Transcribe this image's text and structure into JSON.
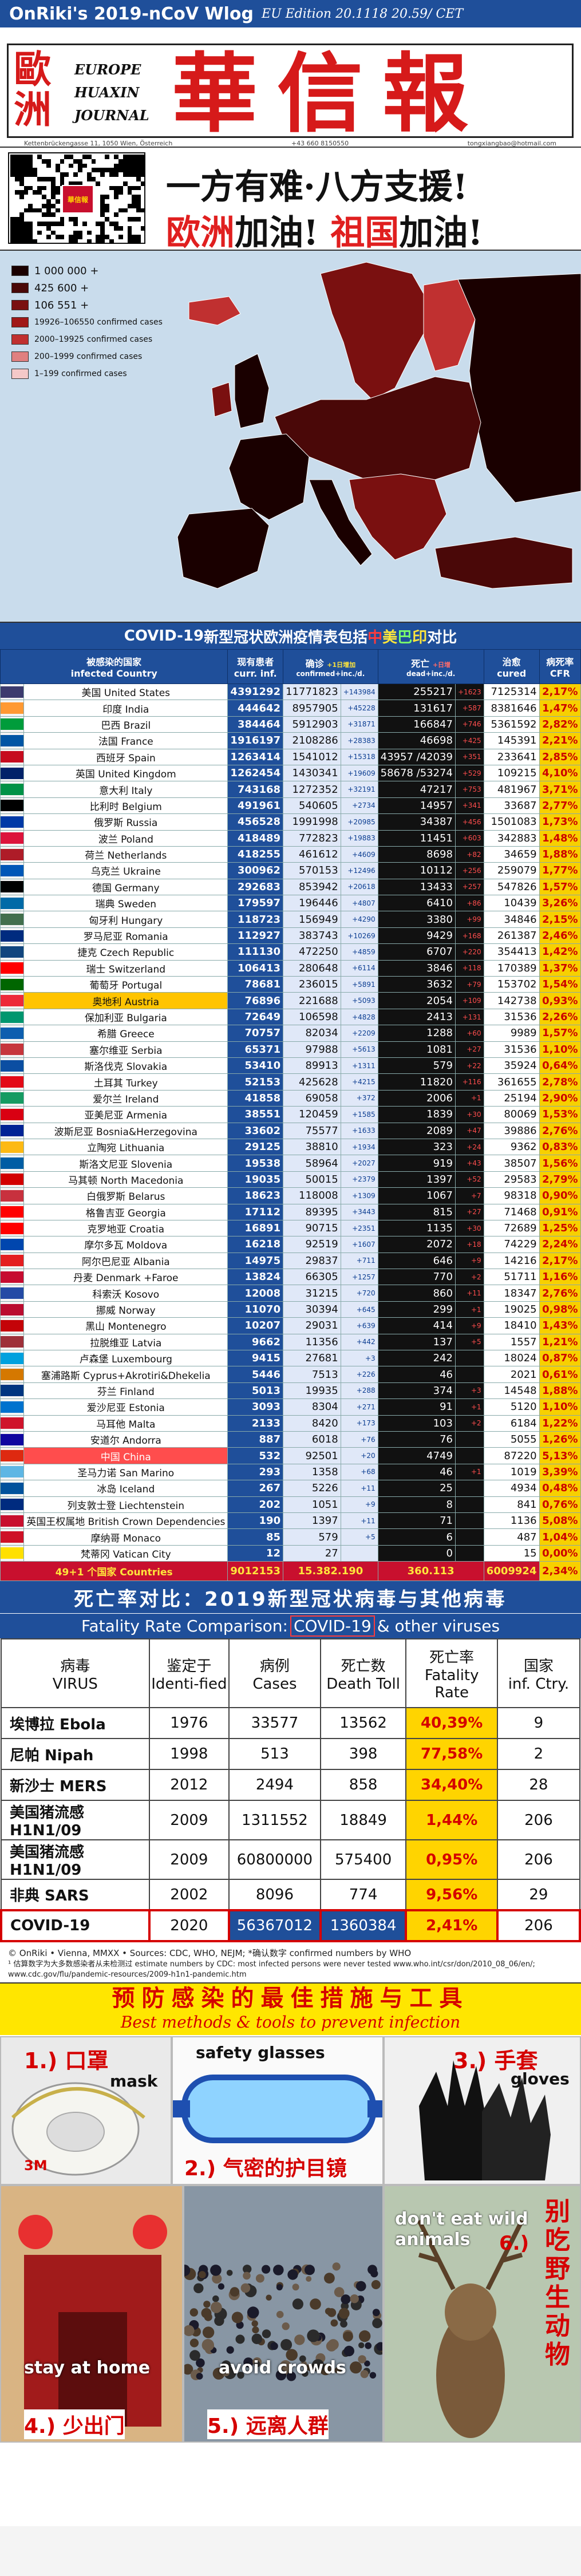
{
  "header": {
    "title": "OnRiki's 2019-nCoV Wlog",
    "edition": "EU Edition 20.1118 20.59/ CET"
  },
  "masthead": {
    "cn_left": "歐洲",
    "en_lines": [
      "EUROPE",
      "HUAXIN",
      "JOURNAL"
    ],
    "cn_title": "華信報",
    "address": "Kettenbrückengasse 11, 1050 Wien, Österreich",
    "phone": "+43 660 8150550",
    "email": "tongxiangbao@hotmail.com"
  },
  "banner": {
    "qr_logo": "華信報",
    "line1": "一方有难·八方支援!",
    "line2_a": "欧洲",
    "line2_b": "加油! ",
    "line2_c": "祖国",
    "line2_d": "加油!"
  },
  "map_legend": [
    {
      "label": "1 000 000 +",
      "color": "#1a0000"
    },
    {
      "label": "425 600 +",
      "color": "#4a0808"
    },
    {
      "label": "106 551 +",
      "color": "#7a1010"
    },
    {
      "label": "19926–106550 confirmed cases",
      "color": "#a01818"
    },
    {
      "label": "2000–19925 confirmed cases",
      "color": "#c03030"
    },
    {
      "label": "200–1999 confirmed cases",
      "color": "#e08080"
    },
    {
      "label": "1–199 confirmed cases",
      "color": "#f4c8c8"
    }
  ],
  "covid": {
    "title_a": "COVID-19",
    "title_b": "新型冠状欧洲疫情表包括",
    "title_c": "中",
    "title_d": "美",
    "title_e": "巴",
    "title_f": "印",
    "title_g": "对比",
    "headers": {
      "country_cn": "被感染的国家",
      "country_en": "infected Country",
      "cur_cn": "现有患者",
      "cur_en": "curr. inf.",
      "cnf_cn": "确诊",
      "cnf_sub": "+1日增加",
      "cnf_en": "confirmed+inc./d.",
      "dth_cn": "死亡",
      "dth_sub": "+日增",
      "dth_en": "dead+inc./d.",
      "cure_cn": "治愈",
      "cure_en": "cured",
      "cfr_cn": "病死率",
      "cfr_en": "CFR"
    },
    "rows": [
      {
        "name": "美国 United States",
        "flag": "#3c3b6e",
        "cur": "4391292",
        "cnf": "11771823",
        "inc": "+143984",
        "dth": "255217",
        "dinc": "+1623",
        "cure": "7125314",
        "cfr": "2,17%"
      },
      {
        "name": "印度 India",
        "flag": "#ff9933",
        "cur": "444642",
        "cnf": "8957905",
        "inc": "+45228",
        "dth": "131617",
        "dinc": "+587",
        "cure": "8381646",
        "cfr": "1,47%"
      },
      {
        "name": "巴西 Brazil",
        "flag": "#009c3b",
        "cur": "384464",
        "cnf": "5912903",
        "inc": "+31871",
        "dth": "166847",
        "dinc": "+746",
        "cure": "5361592",
        "cfr": "2,82%"
      },
      {
        "name": "法国 France",
        "flag": "#0055a4",
        "cur": "1916197",
        "cnf": "2108286",
        "inc": "+28383",
        "dth": "46698",
        "dinc": "+425",
        "cure": "145391",
        "cfr": "2,21%"
      },
      {
        "name": "西班牙 Spain",
        "flag": "#c60b1e",
        "cur": "1263414",
        "cnf": "1541012",
        "inc": "+15318",
        "dth": "43957 /42039",
        "dinc": "+351",
        "cure": "233641",
        "cfr": "2,85%"
      },
      {
        "name": "英国 United Kingdom",
        "flag": "#012169",
        "cur": "1262454",
        "cnf": "1430341",
        "inc": "+19609",
        "dth": "58678 /53274",
        "dinc": "+529",
        "cure": "109215",
        "cfr": "4,10%"
      },
      {
        "name": "意大利 Italy",
        "flag": "#009246",
        "cur": "743168",
        "cnf": "1272352",
        "inc": "+32191",
        "dth": "47217",
        "dinc": "+753",
        "cure": "481967",
        "cfr": "3,71%"
      },
      {
        "name": "比利时 Belgium",
        "flag": "#000000",
        "cur": "491961",
        "cnf": "540605",
        "inc": "+2734",
        "dth": "14957",
        "dinc": "+341",
        "cure": "33687",
        "cfr": "2,77%"
      },
      {
        "name": "俄罗斯 Russia",
        "flag": "#0039a6",
        "cur": "456528",
        "cnf": "1991998",
        "inc": "+20985",
        "dth": "34387",
        "dinc": "+456",
        "cure": "1501083",
        "cfr": "1,73%"
      },
      {
        "name": "波兰 Poland",
        "flag": "#dc143c",
        "cur": "418489",
        "cnf": "772823",
        "inc": "+19883",
        "dth": "11451",
        "dinc": "+603",
        "cure": "342883",
        "cfr": "1,48%"
      },
      {
        "name": "荷兰 Netherlands",
        "flag": "#ae1c28",
        "cur": "418255",
        "cnf": "461612",
        "inc": "+4609",
        "dth": "8698",
        "dinc": "+82",
        "cure": "34659",
        "cfr": "1,88%"
      },
      {
        "name": "乌克兰 Ukraine",
        "flag": "#0057b7",
        "cur": "300962",
        "cnf": "570153",
        "inc": "+12496",
        "dth": "10112",
        "dinc": "+256",
        "cure": "259079",
        "cfr": "1,77%"
      },
      {
        "name": "德国 Germany",
        "flag": "#000000",
        "cur": "292683",
        "cnf": "853942",
        "inc": "+20618",
        "dth": "13433",
        "dinc": "+257",
        "cure": "547826",
        "cfr": "1,57%"
      },
      {
        "name": "瑞典 Sweden",
        "flag": "#006aa7",
        "cur": "179597",
        "cnf": "196446",
        "inc": "+4807",
        "dth": "6410",
        "dinc": "+86",
        "cure": "10439",
        "cfr": "3,26%"
      },
      {
        "name": "匈牙利 Hungary",
        "flag": "#436f4d",
        "cur": "118723",
        "cnf": "156949",
        "inc": "+4290",
        "dth": "3380",
        "dinc": "+99",
        "cure": "34846",
        "cfr": "2,15%"
      },
      {
        "name": "罗马尼亚 Romania",
        "flag": "#002b7f",
        "cur": "112927",
        "cnf": "383743",
        "inc": "+10269",
        "dth": "9429",
        "dinc": "+168",
        "cure": "261387",
        "cfr": "2,46%"
      },
      {
        "name": "捷克 Czech Republic",
        "flag": "#11457e",
        "cur": "111130",
        "cnf": "472250",
        "inc": "+4859",
        "dth": "6707",
        "dinc": "+220",
        "cure": "354413",
        "cfr": "1,42%"
      },
      {
        "name": "瑞士 Switzerland",
        "flag": "#ff0000",
        "cur": "106413",
        "cnf": "280648",
        "inc": "+6114",
        "dth": "3846",
        "dinc": "+118",
        "cure": "170389",
        "cfr": "1,37%"
      },
      {
        "name": "葡萄牙 Portugal",
        "flag": "#006600",
        "cur": "78681",
        "cnf": "236015",
        "inc": "+5891",
        "dth": "3632",
        "dinc": "+79",
        "cure": "153702",
        "cfr": "1,54%"
      },
      {
        "name": "奥地利 Austria",
        "flag": "#ed2939",
        "cur": "76896",
        "cnf": "221688",
        "inc": "+5093",
        "dth": "2054",
        "dinc": "+109",
        "cure": "142738",
        "cfr": "0,93%",
        "hl": true
      },
      {
        "name": "保加利亚 Bulgaria",
        "flag": "#00966e",
        "cur": "72649",
        "cnf": "106598",
        "inc": "+4828",
        "dth": "2413",
        "dinc": "+131",
        "cure": "31536",
        "cfr": "2,26%"
      },
      {
        "name": "希腊 Greece",
        "flag": "#0d5eaf",
        "cur": "70757",
        "cnf": "82034",
        "inc": "+2209",
        "dth": "1288",
        "dinc": "+60",
        "cure": "9989",
        "cfr": "1,57%"
      },
      {
        "name": "塞尔维亚 Serbia",
        "flag": "#c6363c",
        "cur": "65371",
        "cnf": "97988",
        "inc": "+5613",
        "dth": "1081",
        "dinc": "+27",
        "cure": "31536",
        "cfr": "1,10%"
      },
      {
        "name": "斯洛伐克 Slovakia",
        "flag": "#0b4ea2",
        "cur": "53410",
        "cnf": "89913",
        "inc": "+1311",
        "dth": "579",
        "dinc": "+22",
        "cure": "35924",
        "cfr": "0,64%"
      },
      {
        "name": "土耳其 Turkey",
        "flag": "#e30a17",
        "cur": "52153",
        "cnf": "425628",
        "inc": "+4215",
        "dth": "11820",
        "dinc": "+116",
        "cure": "361655",
        "cfr": "2,78%"
      },
      {
        "name": "爱尔兰 Ireland",
        "flag": "#169b62",
        "cur": "41858",
        "cnf": "69058",
        "inc": "+372",
        "dth": "2006",
        "dinc": "+1",
        "cure": "25194",
        "cfr": "2,90%"
      },
      {
        "name": "亚美尼亚 Armenia",
        "flag": "#d90012",
        "cur": "38551",
        "cnf": "120459",
        "inc": "+1585",
        "dth": "1839",
        "dinc": "+30",
        "cure": "80069",
        "cfr": "1,53%"
      },
      {
        "name": "波斯尼亚 Bosnia&Herzegovina",
        "flag": "#002395",
        "cur": "33602",
        "cnf": "75577",
        "inc": "+1633",
        "dth": "2089",
        "dinc": "+47",
        "cure": "39886",
        "cfr": "2,76%"
      },
      {
        "name": "立陶宛 Lithuania",
        "flag": "#fdb913",
        "cur": "29125",
        "cnf": "38810",
        "inc": "+1934",
        "dth": "323",
        "dinc": "+24",
        "cure": "9362",
        "cfr": "0,83%"
      },
      {
        "name": "斯洛文尼亚 Slovenia",
        "flag": "#005da4",
        "cur": "19538",
        "cnf": "58964",
        "inc": "+2027",
        "dth": "919",
        "dinc": "+43",
        "cure": "38507",
        "cfr": "1,56%"
      },
      {
        "name": "马其顿 North Macedonia",
        "flag": "#d20000",
        "cur": "19035",
        "cnf": "50015",
        "inc": "+2379",
        "dth": "1397",
        "dinc": "+52",
        "cure": "29583",
        "cfr": "2,79%"
      },
      {
        "name": "白俄罗斯 Belarus",
        "flag": "#c8313e",
        "cur": "18623",
        "cnf": "118008",
        "inc": "+1309",
        "dth": "1067",
        "dinc": "+7",
        "cure": "98318",
        "cfr": "0,90%"
      },
      {
        "name": "格鲁吉亚 Georgia",
        "flag": "#ff0000",
        "cur": "17112",
        "cnf": "89395",
        "inc": "+3443",
        "dth": "815",
        "dinc": "+27",
        "cure": "71468",
        "cfr": "0,91%"
      },
      {
        "name": "克罗地亚 Croatia",
        "flag": "#ff0000",
        "cur": "16891",
        "cnf": "90715",
        "inc": "+2351",
        "dth": "1135",
        "dinc": "+30",
        "cure": "72689",
        "cfr": "1,25%"
      },
      {
        "name": "摩尔多瓦 Moldova",
        "flag": "#0046ae",
        "cur": "16218",
        "cnf": "92519",
        "inc": "+1607",
        "dth": "2072",
        "dinc": "+18",
        "cure": "74229",
        "cfr": "2,24%"
      },
      {
        "name": "阿尔巴尼亚 Albania",
        "flag": "#e41e20",
        "cur": "14975",
        "cnf": "29837",
        "inc": "+711",
        "dth": "646",
        "dinc": "+9",
        "cure": "14216",
        "cfr": "2,17%"
      },
      {
        "name": "丹麦 Denmark +Faroe",
        "flag": "#c60c30",
        "cur": "13824",
        "cnf": "66305",
        "inc": "+1257",
        "dth": "770",
        "dinc": "+2",
        "cure": "51711",
        "cfr": "1,16%"
      },
      {
        "name": "科索沃 Kosovo",
        "flag": "#244aa5",
        "cur": "12008",
        "cnf": "31215",
        "inc": "+720",
        "dth": "860",
        "dinc": "+11",
        "cure": "18347",
        "cfr": "2,76%"
      },
      {
        "name": "挪威 Norway",
        "flag": "#ba0c2f",
        "cur": "11070",
        "cnf": "30394",
        "inc": "+645",
        "dth": "299",
        "dinc": "+1",
        "cure": "19025",
        "cfr": "0,98%"
      },
      {
        "name": "黑山 Montenegro",
        "flag": "#c40308",
        "cur": "10207",
        "cnf": "29031",
        "inc": "+639",
        "dth": "414",
        "dinc": "+9",
        "cure": "18410",
        "cfr": "1,43%"
      },
      {
        "name": "拉脱维亚 Latvia",
        "flag": "#9e3039",
        "cur": "9662",
        "cnf": "11356",
        "inc": "+442",
        "dth": "137",
        "dinc": "+5",
        "cure": "1557",
        "cfr": "1,21%"
      },
      {
        "name": "卢森堡 Luxembourg",
        "flag": "#00a1de",
        "cur": "9415",
        "cnf": "27681",
        "inc": "+3",
        "dth": "242",
        "dinc": "",
        "cure": "18024",
        "cfr": "0,87%"
      },
      {
        "name": "塞浦路斯 Cyprus+Akrotiri&Dhekelia",
        "flag": "#d57800",
        "cur": "5446",
        "cnf": "7513",
        "inc": "+226",
        "dth": "46",
        "dinc": "",
        "cure": "2021",
        "cfr": "0,61%"
      },
      {
        "name": "芬兰 Finland",
        "flag": "#003580",
        "cur": "5013",
        "cnf": "19935",
        "inc": "+288",
        "dth": "374",
        "dinc": "+3",
        "cure": "14548",
        "cfr": "1,88%"
      },
      {
        "name": "爱沙尼亚 Estonia",
        "flag": "#0072ce",
        "cur": "3093",
        "cnf": "8304",
        "inc": "+271",
        "dth": "91",
        "dinc": "+1",
        "cure": "5120",
        "cfr": "1,10%"
      },
      {
        "name": "马耳他 Malta",
        "flag": "#cf142b",
        "cur": "2133",
        "cnf": "8420",
        "inc": "+173",
        "dth": "103",
        "dinc": "+2",
        "cure": "6184",
        "cfr": "1,22%"
      },
      {
        "name": "安道尔 Andorra",
        "flag": "#10069f",
        "cur": "887",
        "cnf": "6018",
        "inc": "+76",
        "dth": "76",
        "dinc": "",
        "cure": "5055",
        "cfr": "1,26%"
      },
      {
        "name": "中国 China",
        "flag": "#de2910",
        "cur": "532",
        "cnf": "92501",
        "inc": "+20",
        "dth": "4749",
        "dinc": "",
        "cure": "87220",
        "cfr": "5,13%",
        "china": true
      },
      {
        "name": "圣马力诺 San Marino",
        "flag": "#5eb6e4",
        "cur": "293",
        "cnf": "1358",
        "inc": "+68",
        "dth": "46",
        "dinc": "+1",
        "cure": "1019",
        "cfr": "3,39%"
      },
      {
        "name": "冰岛 Iceland",
        "flag": "#02529c",
        "cur": "267",
        "cnf": "5226",
        "inc": "+11",
        "dth": "25",
        "dinc": "",
        "cure": "4934",
        "cfr": "0,48%"
      },
      {
        "name": "列支敦士登 Liechtenstein",
        "flag": "#002b7f",
        "cur": "202",
        "cnf": "1051",
        "inc": "+9",
        "dth": "8",
        "dinc": "",
        "cure": "841",
        "cfr": "0,76%"
      },
      {
        "name": "英国王权属地 British Crown Dependencies",
        "flag": "#c8102e",
        "cur": "190",
        "cnf": "1397",
        "inc": "+11",
        "dth": "71",
        "dinc": "",
        "cure": "1136",
        "cfr": "5,08%"
      },
      {
        "name": "摩纳哥 Monaco",
        "flag": "#ce1126",
        "cur": "85",
        "cnf": "579",
        "inc": "+5",
        "dth": "6",
        "dinc": "",
        "cure": "487",
        "cfr": "1,04%"
      },
      {
        "name": "梵蒂冈 Vatican City",
        "flag": "#ffe000",
        "cur": "12",
        "cnf": "27",
        "inc": "",
        "dth": "0",
        "dinc": "",
        "cure": "15",
        "cfr": "0,00%"
      }
    ],
    "total": {
      "name": "49+1 个国家 Countries",
      "cur": "9012153",
      "cnf": "15.382.190",
      "dth": "360.113",
      "cure": "6009924",
      "cfr": "2,34%"
    }
  },
  "fatality": {
    "title": "死亡率对比：2019新型冠状病毒与其他病毒",
    "subtitle_a": "Fatality Rate Comparison: ",
    "subtitle_b": "COVID-19",
    "subtitle_c": " & other viruses",
    "headers": {
      "virus_cn": "病毒",
      "virus_en": "VIRUS",
      "year_cn": "鉴定于",
      "year_en": "Identi-fied",
      "cases_cn": "病例",
      "cases_en": "Cases",
      "death_cn": "死亡数",
      "death_en": "Death Toll",
      "rate_cn": "死亡率",
      "rate_en": "Fatality Rate",
      "ctry_cn": "国家",
      "ctry_en": "inf. Ctry."
    },
    "rows": [
      {
        "virus": "埃博拉 Ebola",
        "year": "1976",
        "cases": "33577",
        "death": "13562",
        "rate": "40,39%",
        "ctry": "9"
      },
      {
        "virus": "尼帕 Nipah",
        "year": "1998",
        "cases": "513",
        "death": "398",
        "rate": "77,58%",
        "ctry": "2"
      },
      {
        "virus": "新沙士 MERS",
        "year": "2012",
        "cases": "2494",
        "death": "858",
        "rate": "34,40%",
        "ctry": "28"
      },
      {
        "virus": "美国猪流感H1N1/09",
        "year": "2009",
        "cases": "1311552",
        "death": "18849",
        "rate": "1,44%",
        "ctry": "206"
      },
      {
        "virus": "美国猪流感H1N1/09",
        "year": "2009",
        "cases": "60800000",
        "death": "575400",
        "rate": "0,95%",
        "ctry": "206"
      },
      {
        "virus": "非典 SARS",
        "year": "2002",
        "cases": "8096",
        "death": "774",
        "rate": "9,56%",
        "ctry": "29"
      },
      {
        "virus": "COVID-19",
        "year": "2020",
        "cases": "56367012",
        "death": "1360384",
        "rate": "2,41%",
        "ctry": "206",
        "covid": true
      }
    ],
    "note1": "© OnRiki • Vienna, MMXX • Sources: CDC, WHO, NEJM; *确认数字 confirmed numbers by WHO",
    "note2": "¹ 估算数字为大多数感染者从未检测过 estimate numbers by CDC: most infected persons were never tested www.who.int/csr/don/2010_08_06/en/; www.cdc.gov/flu/pandemic-resources/2009-h1n1-pandemic.htm"
  },
  "prevention": {
    "title_cn": "预防感染的最佳措施与工具",
    "title_en": "Best methods & tools to prevent infection",
    "mask_cn": "1.) 口罩",
    "mask_en": "mask",
    "glasses_en": "safety glasses",
    "gloves_cn": "3.) 手套",
    "gloves_en": "gloves",
    "goggle_cn": "2.) 气密的护目镜",
    "wild_en": "don't eat wild animals",
    "wild_num": "6.)",
    "wild_cn": "别吃野生动物",
    "home_en": "stay at home",
    "home_cn": "4.) 少出门",
    "crowd_en": "avoid crowds",
    "crowd_cn": "5.) 远离人群",
    "mask_brand": "3M"
  },
  "colors": {
    "header_blue": "#1f4f9a",
    "accent_red": "#d61a1a",
    "cfr_yellow": "#f7d000"
  }
}
